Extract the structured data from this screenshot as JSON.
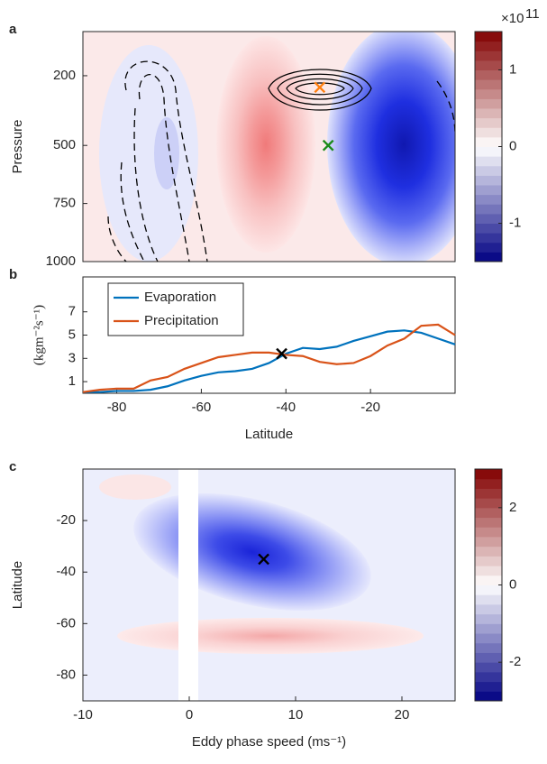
{
  "chart_data": [
    {
      "type": "contour",
      "panel": "a",
      "ylabel": "Pressure",
      "xlim": [
        -88,
        0
      ],
      "ylim": [
        1000,
        10
      ],
      "yticks": [
        200,
        500,
        750,
        1000
      ],
      "colorbar": {
        "clim": [
          -1.5,
          1.5
        ],
        "ticks": [
          -1,
          0,
          1
        ],
        "multiplier": "×10",
        "exponent": "11"
      },
      "markers": [
        {
          "x": -32,
          "y": 250,
          "color": "#ff7f0e"
        },
        {
          "x": -30,
          "y": 500,
          "color": "#1a8a1a"
        }
      ]
    },
    {
      "type": "line",
      "panel": "b",
      "ylabel": "(kgm⁻²s⁻¹)",
      "xlabel": "Latitude",
      "x": [
        -88,
        -84,
        -80,
        -76,
        -72,
        -68,
        -64,
        -60,
        -56,
        -52,
        -48,
        -44,
        -40,
        -36,
        -32,
        -28,
        -24,
        -20,
        -16,
        -12,
        -8,
        -4,
        0
      ],
      "xlim": [
        -88,
        0
      ],
      "xticks": [
        -80,
        -60,
        -40,
        -20
      ],
      "ylim": [
        0,
        10
      ],
      "yticks": [
        1,
        3,
        5,
        7
      ],
      "series": [
        {
          "name": "Evaporation",
          "color": "#0072bd",
          "values": [
            0.1,
            0.1,
            0.2,
            0.2,
            0.3,
            0.6,
            1.1,
            1.5,
            1.8,
            1.9,
            2.1,
            2.6,
            3.4,
            3.9,
            3.8,
            4.0,
            4.5,
            4.9,
            5.3,
            5.4,
            5.2,
            4.7,
            4.2
          ]
        },
        {
          "name": "Precipitation",
          "color": "#d95319",
          "values": [
            0.1,
            0.3,
            0.4,
            0.4,
            1.1,
            1.4,
            2.1,
            2.6,
            3.1,
            3.3,
            3.5,
            3.5,
            3.3,
            3.2,
            2.7,
            2.5,
            2.6,
            3.2,
            4.1,
            4.7,
            5.8,
            5.9,
            5.0
          ]
        }
      ],
      "markers": [
        {
          "x": -41,
          "y": 3.4,
          "color": "#000000"
        }
      ]
    },
    {
      "type": "contour",
      "panel": "c",
      "ylabel": "Latitude",
      "xlabel": "Eddy phase speed (ms⁻¹)",
      "xlim": [
        -10,
        25
      ],
      "xticks": [
        -10,
        0,
        10,
        20
      ],
      "ylim": [
        -90,
        0
      ],
      "yticks": [
        -80,
        -60,
        -40,
        -20
      ],
      "colorbar": {
        "clim": [
          -3,
          3
        ],
        "ticks": [
          -2,
          0,
          2
        ]
      },
      "markers": [
        {
          "x": 7,
          "y": -35,
          "color": "#000000"
        }
      ]
    }
  ]
}
